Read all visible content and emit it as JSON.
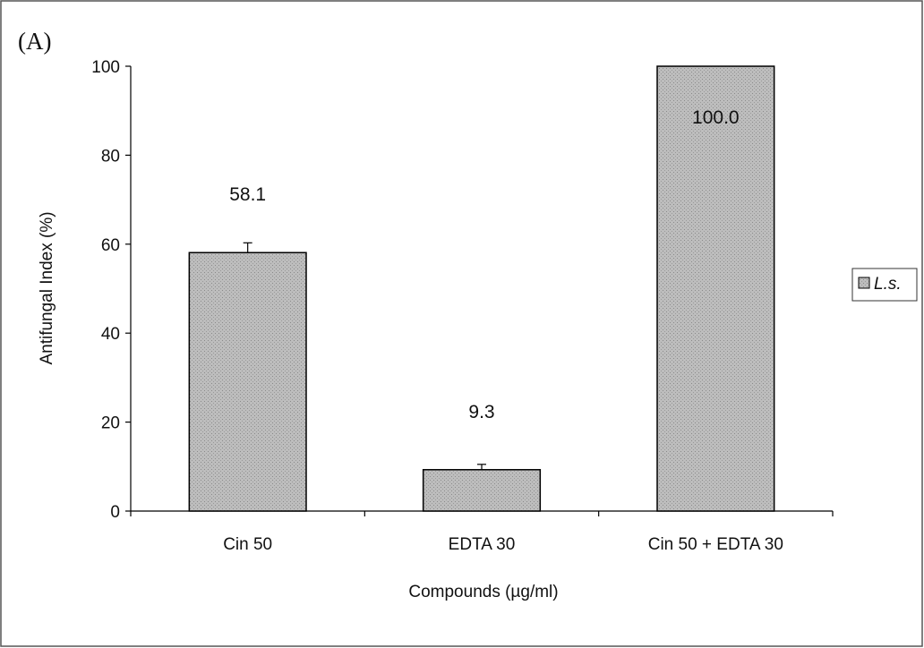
{
  "panel_label": "(A)",
  "chart_data": {
    "type": "bar",
    "categories": [
      "Cin 50",
      "EDTA 30",
      "Cin 50 + EDTA 30"
    ],
    "series": [
      {
        "name": "L.s.",
        "values": [
          58.1,
          9.3,
          100.0
        ],
        "value_labels": [
          "58.1",
          "9.3",
          "100.0"
        ],
        "error": [
          2.2,
          1.2,
          0
        ]
      }
    ],
    "title": "",
    "xlabel": "Compounds (µg/ml)",
    "ylabel": "Antifungal Index (%)",
    "ylim": [
      0,
      100
    ],
    "yticks": [
      0,
      20,
      40,
      60,
      80,
      100
    ],
    "grid": false,
    "legend": "right",
    "bar_color": "#b5b5b5"
  }
}
